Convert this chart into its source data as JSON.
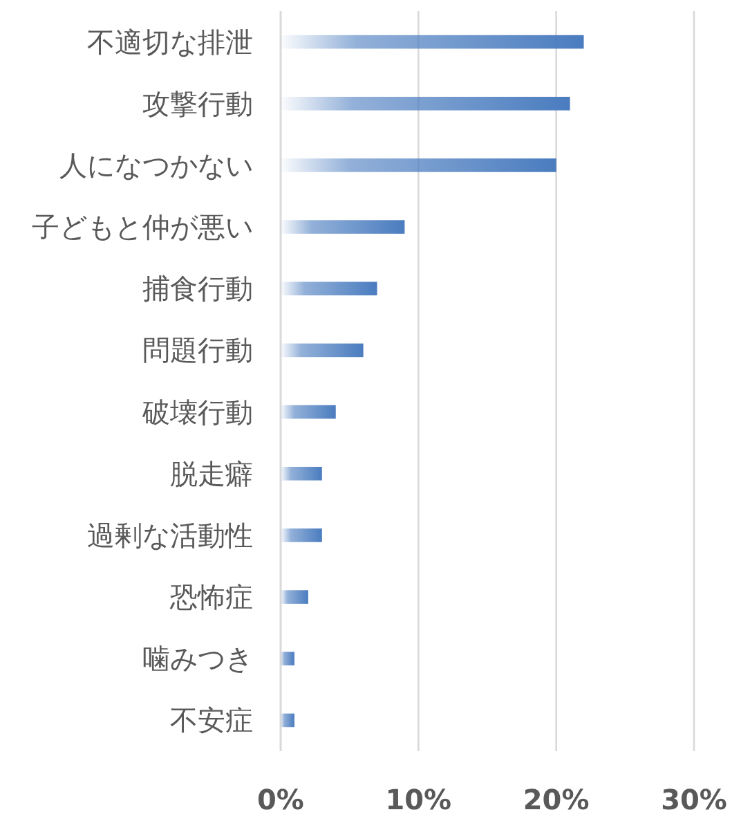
{
  "chart_data": {
    "type": "bar",
    "orientation": "horizontal",
    "categories": [
      "不適切な排泄",
      "攻撃行動",
      "人になつかない",
      "子どもと仲が悪い",
      "捕食行動",
      "問題行動",
      "破壊行動",
      "脱走癖",
      "過剰な活動性",
      "恐怖症",
      "噛みつき",
      "不安症"
    ],
    "values": [
      22,
      21,
      20,
      9,
      7,
      6,
      4,
      3,
      3,
      2,
      1,
      1
    ],
    "color": "#4a7cbf",
    "xlim": [
      0,
      30
    ],
    "xticks": [
      {
        "value": 0,
        "label": "0%"
      },
      {
        "value": 10,
        "label": "10%"
      },
      {
        "value": 20,
        "label": "20%"
      },
      {
        "value": 30,
        "label": "30%"
      }
    ],
    "grid": "x"
  }
}
